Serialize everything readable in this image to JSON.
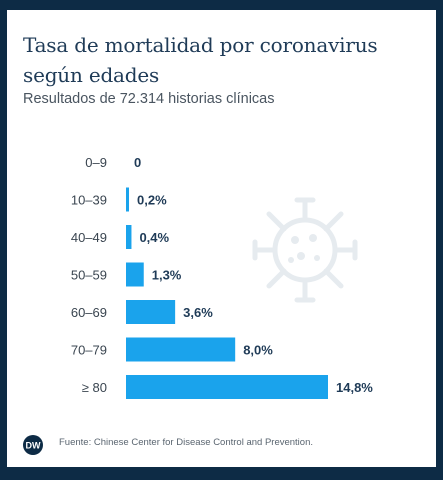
{
  "title": "Tasa de mortalidad por coronavirus según edades",
  "subtitle": "Resultados de 72.314 historias clínicas",
  "source": "Fuente: Chinese Center for Disease Control and Prevention.",
  "logo_text": "DW",
  "colors": {
    "bar": "#1aa3ec",
    "label": "#1f3b57",
    "virus": "#e6ebef",
    "background": "#0d2b45"
  },
  "icons": {
    "background_graphic": "virus-icon",
    "logo": "dw-logo-icon"
  },
  "chart_data": {
    "type": "bar",
    "orientation": "horizontal",
    "categories": [
      "0–9",
      "10–39",
      "40–49",
      "50–59",
      "60–69",
      "70–79",
      "≥ 80"
    ],
    "values": [
      0,
      0.2,
      0.4,
      1.3,
      3.6,
      8.0,
      14.8
    ],
    "value_labels": [
      "0",
      "0,2%",
      "0,4%",
      "1,3%",
      "3,6%",
      "8,0%",
      "14,8%"
    ],
    "unit": "%",
    "xlim": [
      0,
      14.8
    ],
    "grid": false,
    "legend": "none"
  }
}
